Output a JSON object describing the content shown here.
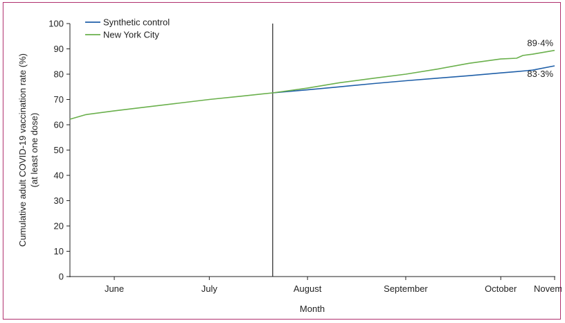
{
  "chart_data": {
    "type": "line",
    "xlabel": "Month",
    "ylabel_line1": "Cumulative adult COVID-19 vaccination rate (%)",
    "ylabel_line2": "(at least one dose)",
    "ylim": [
      0,
      100
    ],
    "yticks": [
      0,
      10,
      20,
      30,
      40,
      50,
      60,
      70,
      80,
      90,
      100
    ],
    "xlim": [
      "2021-06-01",
      "2021-11-01"
    ],
    "x_ticks": [
      {
        "date": "2021-06-15",
        "label": "June"
      },
      {
        "date": "2021-07-15",
        "label": "July"
      },
      {
        "date": "2021-08-15",
        "label": "August"
      },
      {
        "date": "2021-09-15",
        "label": "September"
      },
      {
        "date": "2021-10-15",
        "label": "October"
      },
      {
        "date": "2021-11-01",
        "label": "November"
      }
    ],
    "intervention_date": "2021-08-04",
    "grid": false,
    "legend_position": "top-left",
    "series": [
      {
        "name": "Synthetic control",
        "color": "#1f5fa8",
        "end_label": "83·3%",
        "points": [
          [
            "2021-08-04",
            72.6
          ],
          [
            "2021-08-15",
            73.8
          ],
          [
            "2021-08-25",
            75.0
          ],
          [
            "2021-09-05",
            76.3
          ],
          [
            "2021-09-15",
            77.4
          ],
          [
            "2021-09-25",
            78.4
          ],
          [
            "2021-10-05",
            79.4
          ],
          [
            "2021-10-15",
            80.5
          ],
          [
            "2021-10-20",
            81.0
          ],
          [
            "2021-10-25",
            81.6
          ],
          [
            "2021-11-01",
            83.3
          ]
        ]
      },
      {
        "name": "New York City",
        "color": "#6ab04c",
        "end_label": "89·4%",
        "points": [
          [
            "2021-06-01",
            62.2
          ],
          [
            "2021-06-06",
            64.0
          ],
          [
            "2021-06-15",
            65.5
          ],
          [
            "2021-06-25",
            67.0
          ],
          [
            "2021-07-05",
            68.5
          ],
          [
            "2021-07-15",
            70.0
          ],
          [
            "2021-07-25",
            71.3
          ],
          [
            "2021-08-04",
            72.6
          ],
          [
            "2021-08-15",
            74.5
          ],
          [
            "2021-08-25",
            76.6
          ],
          [
            "2021-09-05",
            78.4
          ],
          [
            "2021-09-15",
            80.0
          ],
          [
            "2021-09-25",
            82.0
          ],
          [
            "2021-10-05",
            84.3
          ],
          [
            "2021-10-15",
            86.0
          ],
          [
            "2021-10-20",
            86.3
          ],
          [
            "2021-10-22",
            87.4
          ],
          [
            "2021-10-25",
            87.9
          ],
          [
            "2021-11-01",
            89.4
          ]
        ]
      }
    ]
  }
}
